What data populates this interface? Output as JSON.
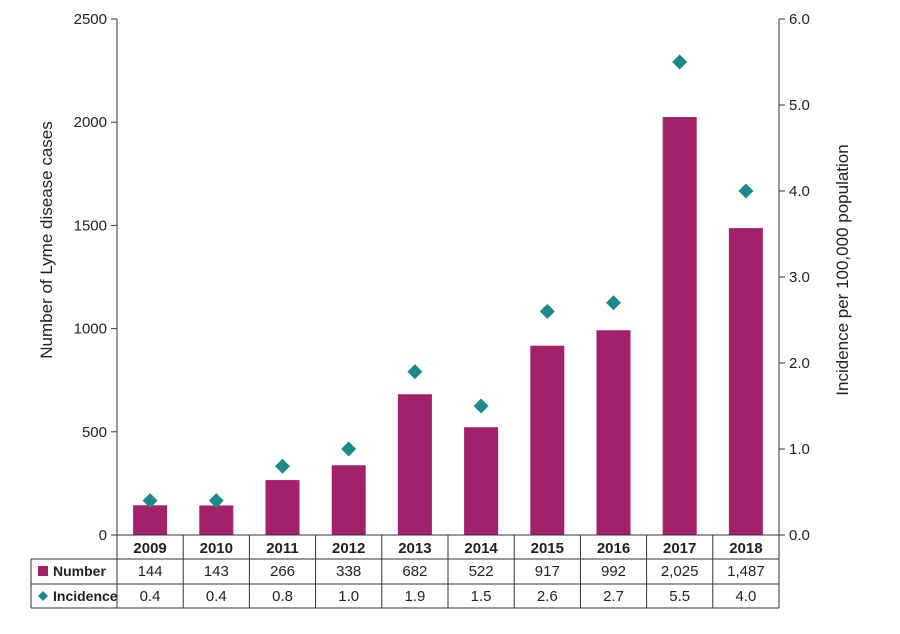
{
  "chart_data": {
    "type": "bar",
    "categories": [
      "2009",
      "2010",
      "2011",
      "2012",
      "2013",
      "2014",
      "2015",
      "2016",
      "2017",
      "2018"
    ],
    "series": [
      {
        "name": "Number",
        "kind": "bar",
        "axis": "left",
        "color": "#A3206B",
        "values": [
          144,
          143,
          266,
          338,
          682,
          522,
          917,
          992,
          2025,
          1487
        ],
        "labels": [
          "144",
          "143",
          "266",
          "338",
          "682",
          "522",
          "917",
          "992",
          "2,025",
          "1,487"
        ]
      },
      {
        "name": "Incidence",
        "kind": "scatter",
        "marker": "diamond",
        "axis": "right",
        "color": "#1C8A88",
        "values": [
          0.4,
          0.4,
          0.8,
          1.0,
          1.9,
          1.5,
          2.6,
          2.7,
          5.5,
          4.0
        ],
        "labels": [
          "0.4",
          "0.4",
          "0.8",
          "1.0",
          "1.9",
          "1.5",
          "2.6",
          "2.7",
          "5.5",
          "4.0"
        ]
      }
    ],
    "ylabel": "Number of Lyme disease cases",
    "y2label": "Incidence per 100,000 population",
    "ylim": [
      0,
      2500
    ],
    "y2lim": [
      0,
      6
    ],
    "yticks": [
      "0",
      "500",
      "1000",
      "1500",
      "2000",
      "2500"
    ],
    "y2ticks": [
      "0.0",
      "1.0",
      "2.0",
      "3.0",
      "4.0",
      "5.0",
      "6.0"
    ],
    "grid": false,
    "legend": "data-table"
  }
}
